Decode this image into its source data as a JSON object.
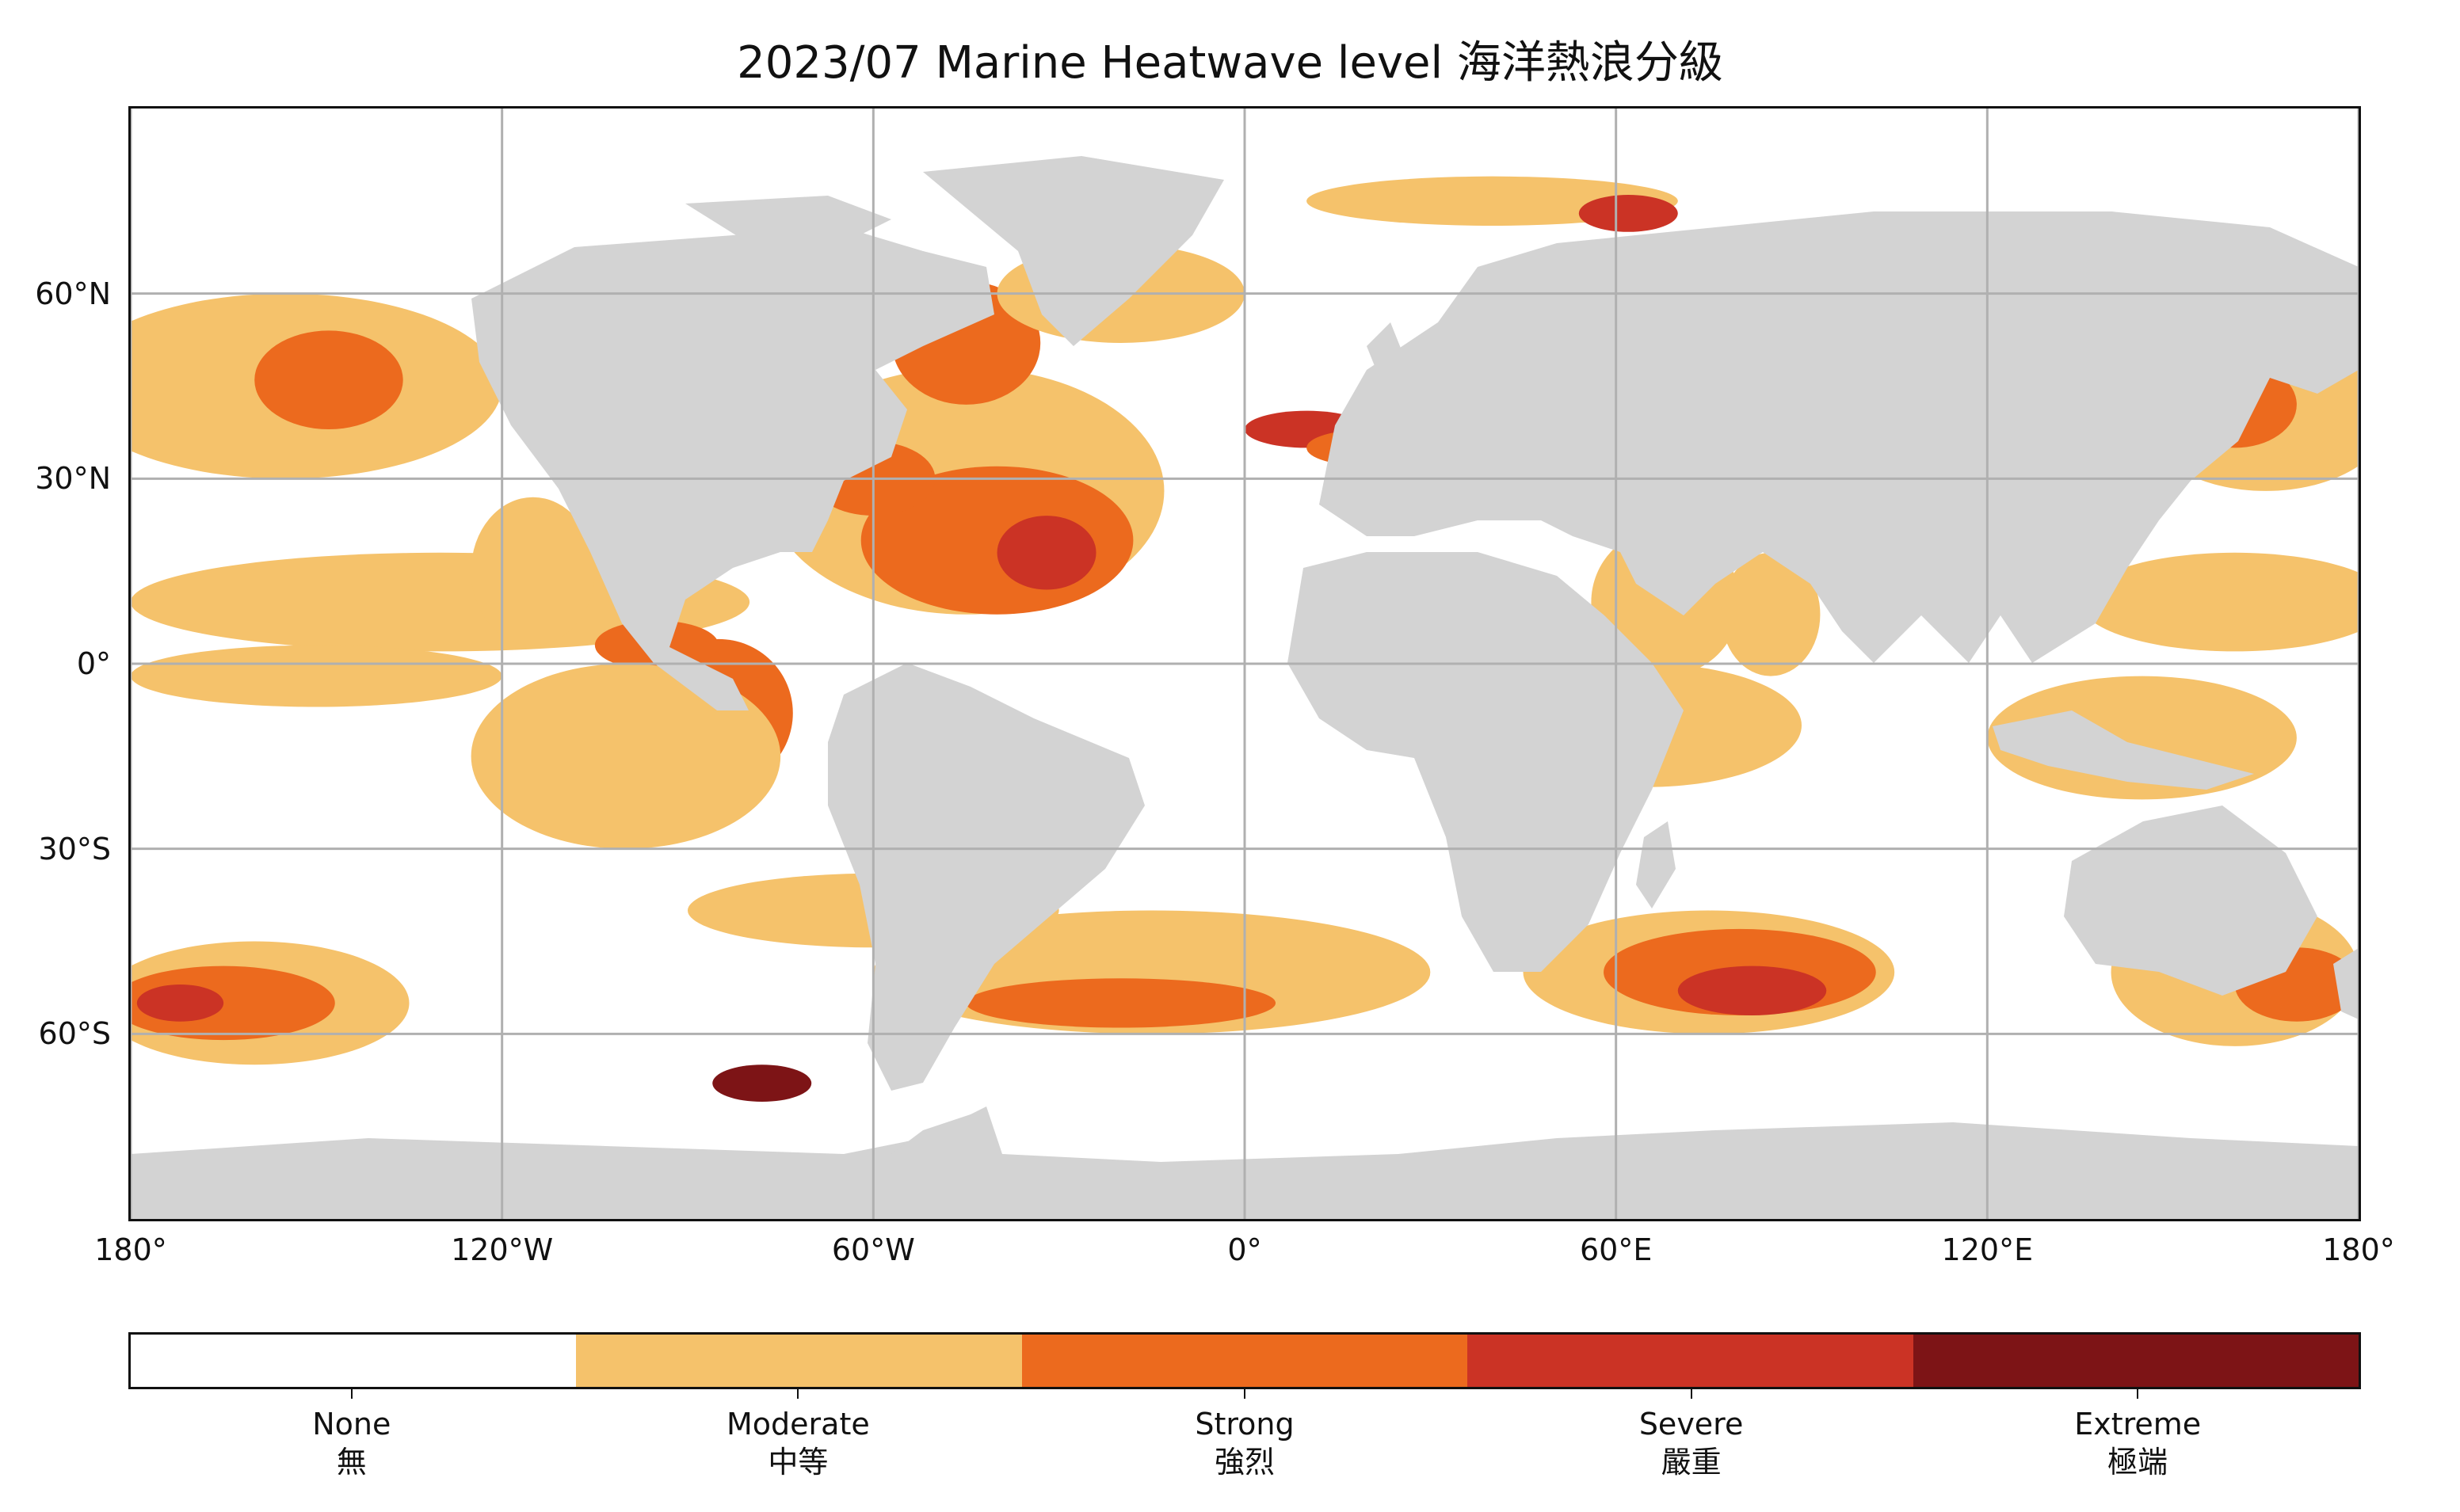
{
  "title": "2023/07 Marine Heatwave level 海洋熱浪分級",
  "axes": {
    "y_ticks": [
      {
        "label": "60°N",
        "lat": 60
      },
      {
        "label": "30°N",
        "lat": 30
      },
      {
        "label": "0°",
        "lat": 0
      },
      {
        "label": "30°S",
        "lat": -30
      },
      {
        "label": "60°S",
        "lat": -60
      }
    ],
    "x_ticks": [
      {
        "label": "180°",
        "lon": -180
      },
      {
        "label": "120°W",
        "lon": -120
      },
      {
        "label": "60°W",
        "lon": -60
      },
      {
        "label": "0°",
        "lon": 0
      },
      {
        "label": "60°E",
        "lon": 60
      },
      {
        "label": "120°E",
        "lon": 120
      },
      {
        "label": "180°",
        "lon": 180
      }
    ],
    "lon_range": [
      -180,
      180
    ],
    "lat_range": [
      -90,
      90
    ],
    "grid": true
  },
  "colors": {
    "land": "#d3d3d3",
    "grid": "#b0b0b0",
    "none": "#ffffff",
    "moderate": "#f5c26b",
    "strong": "#ec6a1e",
    "severe": "#cb3325",
    "extreme": "#7d1416"
  },
  "legend": [
    {
      "en": "None",
      "zh": "無",
      "color": "#ffffff"
    },
    {
      "en": "Moderate",
      "zh": "中等",
      "color": "#f5c26b"
    },
    {
      "en": "Strong",
      "zh": "強烈",
      "color": "#ec6a1e"
    },
    {
      "en": "Severe",
      "zh": "嚴重",
      "color": "#cb3325"
    },
    {
      "en": "Extreme",
      "zh": "極端",
      "color": "#7d1416"
    }
  ],
  "heat_regions": [
    {
      "level": "moderate",
      "lon": -155,
      "lat": 45,
      "rlon": 35,
      "rlat": 15
    },
    {
      "level": "strong",
      "lon": -148,
      "lat": 46,
      "rlon": 12,
      "rlat": 8
    },
    {
      "level": "moderate",
      "lon": -130,
      "lat": 10,
      "rlon": 50,
      "rlat": 8
    },
    {
      "level": "moderate",
      "lon": -150,
      "lat": -2,
      "rlon": 30,
      "rlat": 5
    },
    {
      "level": "moderate",
      "lon": -115,
      "lat": 15,
      "rlon": 10,
      "rlat": 12
    },
    {
      "level": "strong",
      "lon": -85,
      "lat": -8,
      "rlon": 12,
      "rlat": 12
    },
    {
      "level": "strong",
      "lon": -95,
      "lat": 3,
      "rlon": 10,
      "rlat": 4
    },
    {
      "level": "moderate",
      "lon": -100,
      "lat": -15,
      "rlon": 25,
      "rlat": 15
    },
    {
      "level": "moderate",
      "lon": -45,
      "lat": 28,
      "rlon": 32,
      "rlat": 20
    },
    {
      "level": "strong",
      "lon": -40,
      "lat": 20,
      "rlon": 22,
      "rlat": 12
    },
    {
      "level": "severe",
      "lon": -32,
      "lat": 18,
      "rlon": 8,
      "rlat": 6
    },
    {
      "level": "strong",
      "lon": -45,
      "lat": 52,
      "rlon": 12,
      "rlat": 10
    },
    {
      "level": "strong",
      "lon": -80,
      "lat": 25,
      "rlon": 8,
      "rlat": 6
    },
    {
      "level": "strong",
      "lon": -60,
      "lat": 30,
      "rlon": 10,
      "rlat": 6
    },
    {
      "level": "moderate",
      "lon": -20,
      "lat": 60,
      "rlon": 20,
      "rlat": 8
    },
    {
      "level": "severe",
      "lon": 10,
      "lat": 38,
      "rlon": 10,
      "rlat": 3
    },
    {
      "level": "strong",
      "lon": 20,
      "lat": 35,
      "rlon": 10,
      "rlat": 3
    },
    {
      "level": "moderate",
      "lon": 40,
      "lat": 75,
      "rlon": 30,
      "rlat": 4
    },
    {
      "level": "severe",
      "lon": 62,
      "lat": 73,
      "rlon": 8,
      "rlat": 3
    },
    {
      "level": "moderate",
      "lon": 68,
      "lat": 10,
      "rlon": 12,
      "rlat": 12
    },
    {
      "level": "moderate",
      "lon": 85,
      "lat": 8,
      "rlon": 8,
      "rlat": 10
    },
    {
      "level": "moderate",
      "lon": 65,
      "lat": -10,
      "rlon": 25,
      "rlat": 10
    },
    {
      "level": "moderate",
      "lon": 165,
      "lat": 40,
      "rlon": 20,
      "rlat": 12
    },
    {
      "level": "strong",
      "lon": 160,
      "lat": 42,
      "rlon": 10,
      "rlat": 7
    },
    {
      "level": "moderate",
      "lon": 160,
      "lat": 10,
      "rlon": 25,
      "rlat": 8
    },
    {
      "level": "strong",
      "lon": 110,
      "lat": 18,
      "rlon": 4,
      "rlat": 3
    },
    {
      "level": "moderate",
      "lon": 145,
      "lat": -12,
      "rlon": 25,
      "rlat": 10
    },
    {
      "level": "moderate",
      "lon": 75,
      "lat": -50,
      "rlon": 30,
      "rlat": 10
    },
    {
      "level": "strong",
      "lon": 80,
      "lat": -50,
      "rlon": 22,
      "rlat": 7
    },
    {
      "level": "severe",
      "lon": 82,
      "lat": -53,
      "rlon": 12,
      "rlat": 4
    },
    {
      "level": "moderate",
      "lon": -15,
      "lat": -50,
      "rlon": 45,
      "rlat": 10
    },
    {
      "level": "strong",
      "lon": -20,
      "lat": -55,
      "rlon": 25,
      "rlat": 4
    },
    {
      "level": "moderate",
      "lon": -160,
      "lat": -55,
      "rlon": 25,
      "rlat": 10
    },
    {
      "level": "strong",
      "lon": -165,
      "lat": -55,
      "rlon": 18,
      "rlat": 6
    },
    {
      "level": "severe",
      "lon": -172,
      "lat": -55,
      "rlon": 7,
      "rlat": 3
    },
    {
      "level": "moderate",
      "lon": 160,
      "lat": -50,
      "rlon": 20,
      "rlat": 12
    },
    {
      "level": "strong",
      "lon": 170,
      "lat": -52,
      "rlon": 10,
      "rlat": 6
    },
    {
      "level": "extreme",
      "lon": -78,
      "lat": -68,
      "rlon": 8,
      "rlat": 3
    },
    {
      "level": "moderate",
      "lon": -45,
      "lat": -22,
      "rlon": 8,
      "rlat": 8
    },
    {
      "level": "moderate",
      "lon": -60,
      "lat": -40,
      "rlon": 30,
      "rlat": 6
    }
  ]
}
